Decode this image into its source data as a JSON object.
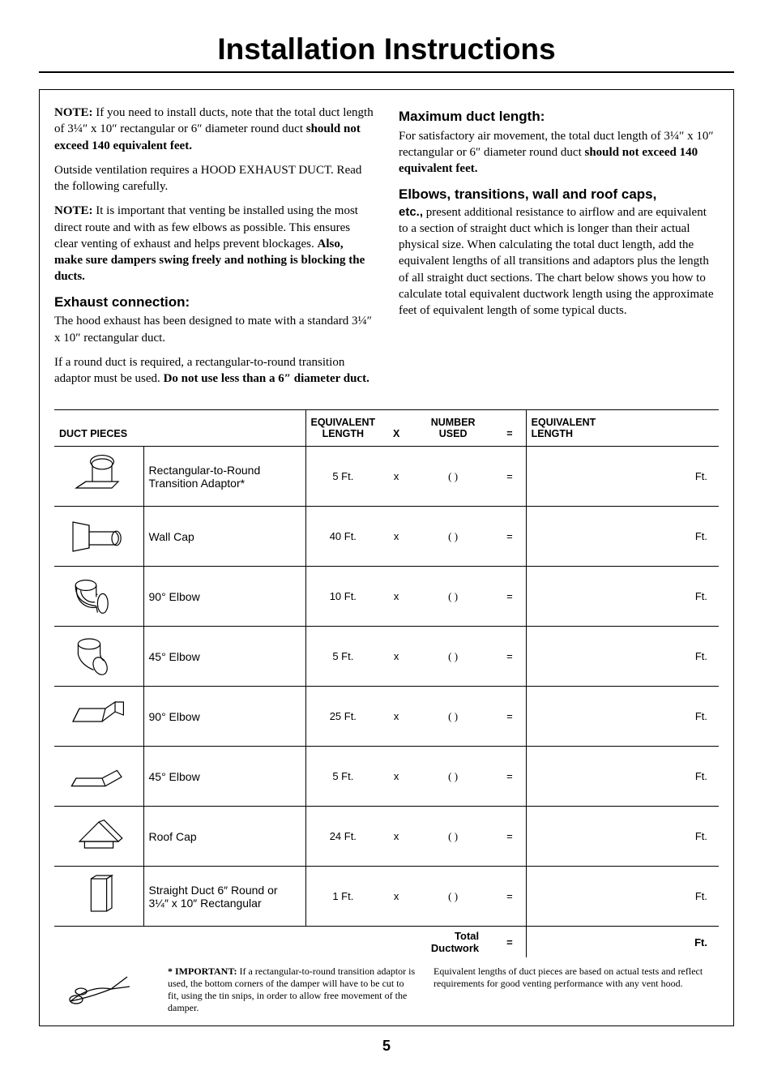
{
  "page": {
    "title": "Installation Instructions",
    "number": "5"
  },
  "left_column": {
    "p1_prefix": "NOTE:",
    "p1": " If you need to install ducts, note that the total duct length of 3¼″ x 10″ rectangular or 6″ diameter round duct ",
    "p1_bold": "should not exceed 140 equivalent feet.",
    "p2": "Outside ventilation requires a HOOD EXHAUST DUCT. Read the following carefully.",
    "p3_prefix": "NOTE:",
    "p3": " It is important that venting be installed using the most direct route and with as few elbows as possible. This ensures clear venting of exhaust and helps prevent blockages. ",
    "p3_bold": "Also, make sure dampers swing freely and nothing is blocking the ducts.",
    "h1": "Exhaust connection:",
    "p4": "The hood exhaust has been designed to mate with a standard 3¼″ x 10″ rectangular duct.",
    "p5a": "If a round duct is required, a rectangular-to-round transition adaptor must be used. ",
    "p5_bold": "Do not use less than a 6″ diameter duct."
  },
  "right_column": {
    "h1": "Maximum duct length:",
    "p1a": "For satisfactory air movement, the total duct length of 3¼″ x 10″ rectangular or 6″ diameter round duct ",
    "p1_bold": "should not exceed 140 equivalent feet.",
    "h2": "Elbows, transitions, wall and roof caps,",
    "etc": "etc.,",
    "p2": " present additional resistance to airflow and are equivalent to a section of straight duct which is longer than their actual physical size. When calculating the total duct length, add the equivalent lengths of all transitions and adaptors plus the length of all straight duct sections. The chart below shows you how to calculate total equivalent ductwork length using the approximate feet of equivalent length of some typical ducts."
  },
  "table": {
    "headers": {
      "pieces": "DUCT PIECES",
      "eq_len": "EQUIVALENT\nLENGTH",
      "x": "x",
      "num": "NUMBER\nUSED",
      "eq": "=",
      "res": "EQUIVALENT\nLENGTH"
    },
    "unit": "Ft.",
    "blank": "(    )",
    "x_sym": "x",
    "eq_sym": "=",
    "rows": [
      {
        "name": "Rectangular-to-Round Transition Adaptor*",
        "eq": "5 Ft.",
        "icon": "adaptor"
      },
      {
        "name": "Wall Cap",
        "eq": "40 Ft.",
        "icon": "wallcap"
      },
      {
        "name": "90° Elbow",
        "eq": "10 Ft.",
        "icon": "elbow90r"
      },
      {
        "name": "45° Elbow",
        "eq": "5 Ft.",
        "icon": "elbow45r"
      },
      {
        "name": "90° Elbow",
        "eq": "25 Ft.",
        "icon": "elbow90rect"
      },
      {
        "name": "45° Elbow",
        "eq": "5 Ft.",
        "icon": "elbow45rect"
      },
      {
        "name": "Roof Cap",
        "eq": "24 Ft.",
        "icon": "roofcap"
      },
      {
        "name": "Straight Duct 6″ Round or 3¼″ x 10″ Rectangular",
        "eq": "1 Ft.",
        "icon": "straight"
      }
    ],
    "total_label": "Total Ductwork",
    "total_eq": "=",
    "total_unit": "Ft."
  },
  "footnotes": {
    "left_prefix": "* IMPORTANT:",
    "left": " If a rectangular-to-round transition adaptor is used, the bottom corners of the damper will have to be cut to fit, using the tin snips, in order to allow free movement of the damper.",
    "right": "Equivalent lengths of duct pieces are based on actual tests and reflect requirements for good venting performance with any vent hood."
  }
}
